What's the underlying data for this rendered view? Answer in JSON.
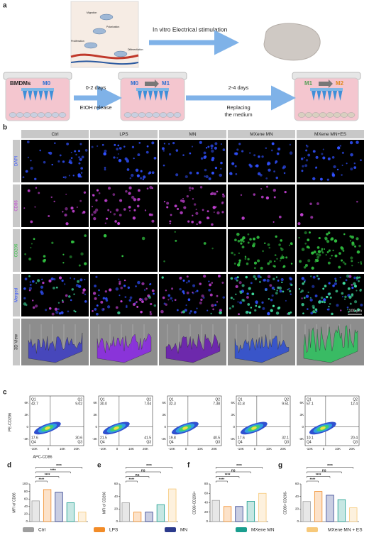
{
  "figure": {
    "panel_a": {
      "label": "a",
      "illustration_labels": [
        "Migration",
        "Polarization",
        "Proliferation",
        "Differentiation"
      ],
      "stimulation": "In vitro Electrical stimulation",
      "wells": [
        {
          "prefix": "BMDMs",
          "from": "M0"
        },
        {
          "from": "M0",
          "to": "M1"
        },
        {
          "from": "M1",
          "to": "M2"
        }
      ],
      "steps": [
        {
          "days": "0-2 days",
          "lines": [
            "EtOH release"
          ]
        },
        {
          "days": "2-4 days",
          "lines": [
            "Replacing",
            "the medium"
          ]
        }
      ]
    },
    "panel_b": {
      "label": "b",
      "columns": [
        "Ctrl",
        "LPS",
        "MN",
        "MXene MN",
        "MXene MN+ES"
      ],
      "rows": [
        "DAPI",
        "CD86",
        "CD206",
        "Merged",
        "3D View"
      ],
      "scale_bar": "100 μm"
    },
    "panel_c": {
      "label": "c",
      "y_axis": "PE-CD206",
      "x_axis": "APC-CD86",
      "yticks": [
        "6K",
        "3K",
        "0",
        "-3K"
      ],
      "xticks": [
        "-10K",
        "0",
        "10K",
        "20K"
      ],
      "quadrant_names": [
        "Q1",
        "Q2",
        "Q3",
        "Q4"
      ],
      "plots": [
        [
          "42.7",
          "9.02",
          "30.6",
          "17.6"
        ],
        [
          "30.0",
          "7.04",
          "41.5",
          "21.5"
        ],
        [
          "32.3",
          "7.38",
          "40.5",
          "19.8"
        ],
        [
          "41.8",
          "9.51",
          "32.1",
          "17.6"
        ],
        [
          "57.1",
          "12.4",
          "20.4",
          "10.1"
        ]
      ]
    },
    "groups": [
      {
        "name": "Ctrl",
        "color": "#9e9e9e"
      },
      {
        "name": "LPS",
        "color": "#f28c28"
      },
      {
        "name": "MN",
        "color": "#2b3a8c"
      },
      {
        "name": "MXene MN",
        "color": "#1a9e8f"
      },
      {
        "name": "MXene MN + ES",
        "color": "#f7c97a"
      }
    ]
  },
  "chart_data": [
    {
      "type": "bar",
      "panel": "d",
      "y_label": "MFI of CD86",
      "values": [
        55,
        85,
        78,
        50,
        25
      ],
      "ylim": [
        0,
        100
      ],
      "yticks": [
        0,
        20,
        40,
        60,
        80,
        100
      ],
      "significance": [
        "****",
        "****",
        "****",
        "****"
      ]
    },
    {
      "type": "bar",
      "panel": "e",
      "y_label": "MFI of CD206",
      "values": [
        30,
        15,
        15,
        27,
        52
      ],
      "ylim": [
        0,
        60
      ],
      "yticks": [
        0,
        20,
        40,
        60
      ],
      "significance": [
        "****",
        "ns",
        "ns",
        "****"
      ]
    },
    {
      "type": "bar",
      "panel": "f",
      "y_label": "CD86-CD206+",
      "values": [
        45,
        32,
        32,
        43,
        60
      ],
      "ylim": [
        0,
        80
      ],
      "yticks": [
        0,
        20,
        40,
        60,
        80
      ],
      "significance": [
        "****",
        "****",
        "ns",
        "****"
      ]
    },
    {
      "type": "bar",
      "panel": "g",
      "y_label": "CD86+CD206-",
      "values": [
        32,
        48,
        42,
        35,
        22
      ],
      "ylim": [
        0,
        60
      ],
      "yticks": [
        0,
        20,
        40,
        60
      ],
      "significance": [
        "****",
        "****",
        "ns",
        "****"
      ]
    }
  ]
}
